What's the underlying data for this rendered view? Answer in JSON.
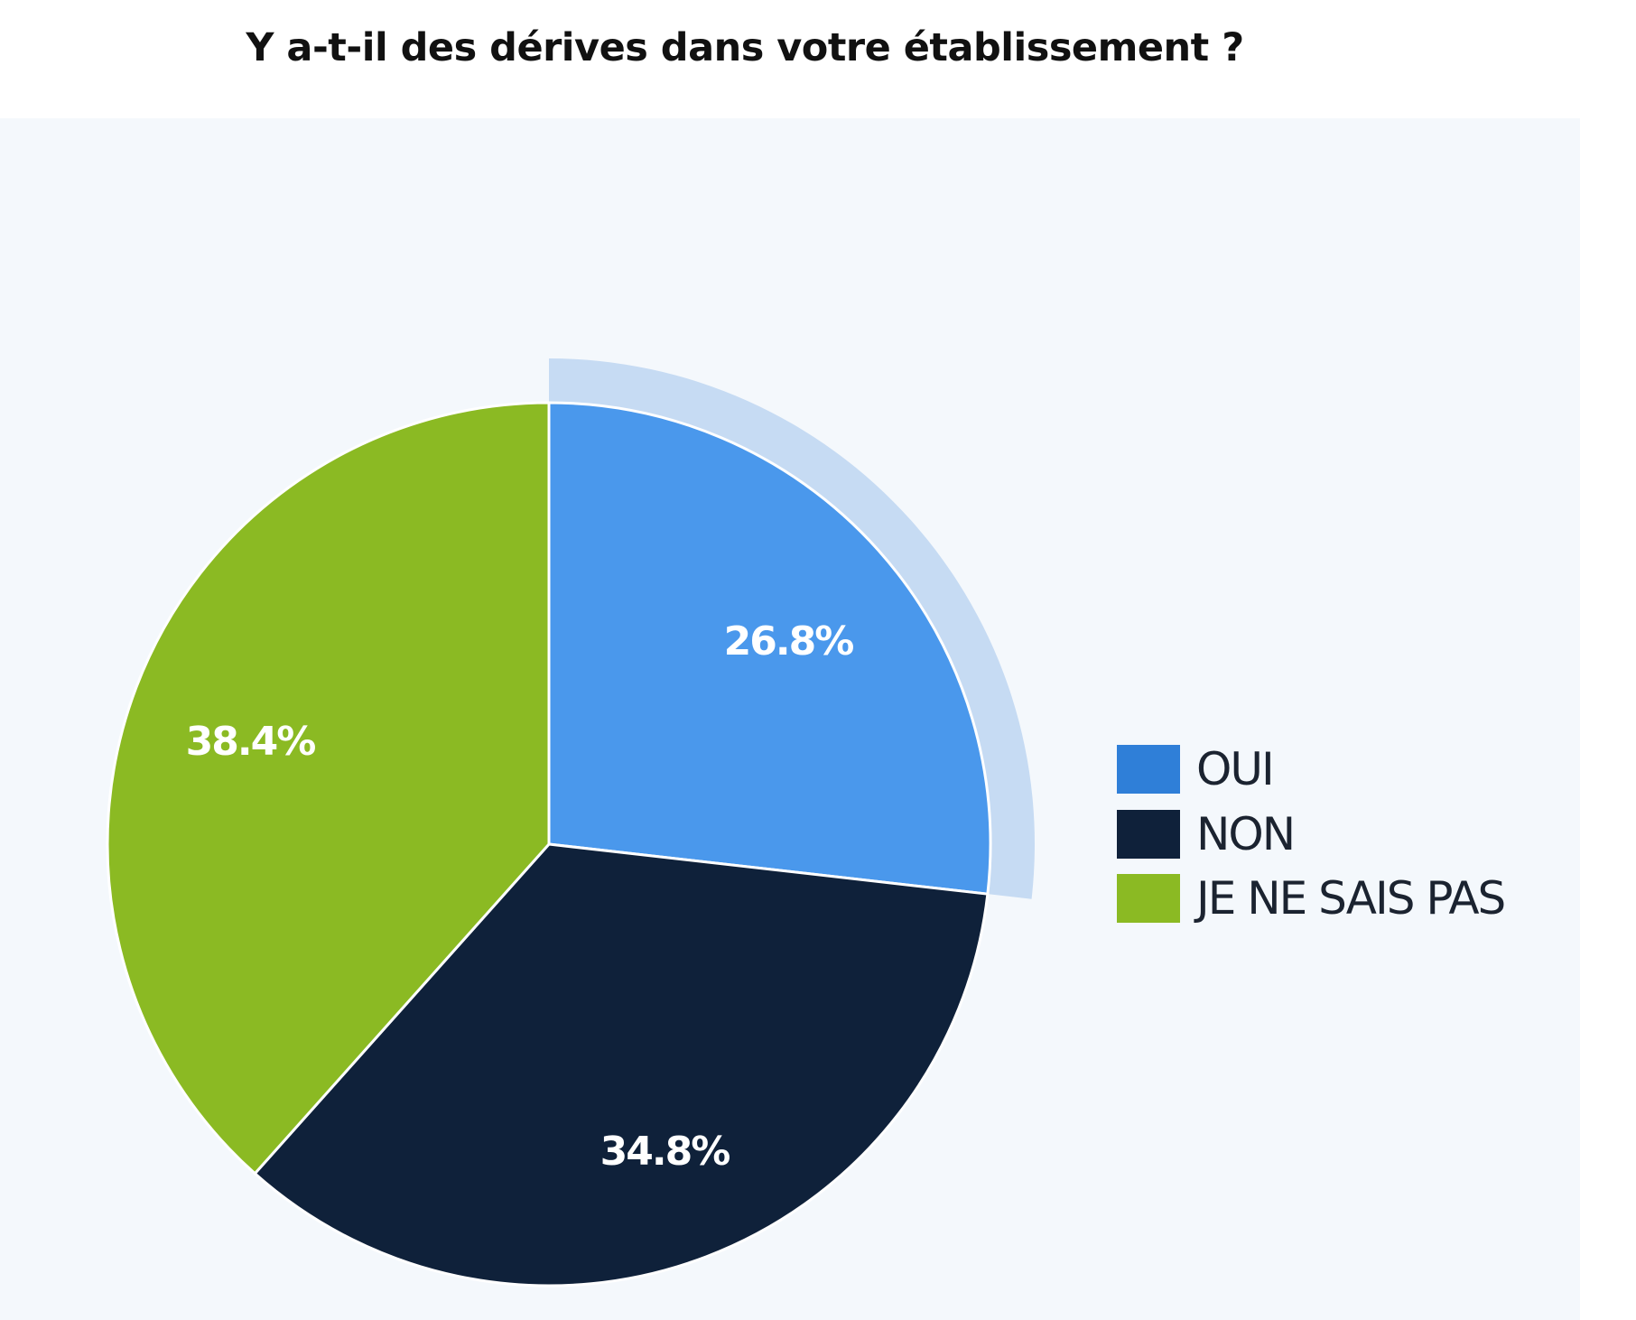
{
  "chart_data": {
    "type": "pie",
    "title": "Y a-t-il des dérives dans votre établissement ?",
    "categories": [
      "OUI",
      "NON",
      "JE NE SAIS PAS"
    ],
    "values": [
      26.8,
      34.8,
      38.4
    ],
    "labels": [
      "26.8%",
      "34.8%",
      "38.4%"
    ],
    "colors": [
      "#4a98ec",
      "#0f213a",
      "#8bba23"
    ],
    "legend_colors": [
      "#2f7fd8",
      "#0f213a",
      "#8bba23"
    ],
    "highlighted": "OUI",
    "highlight_color": "#c6dbf3",
    "legend_position": "right",
    "unit": "%"
  }
}
